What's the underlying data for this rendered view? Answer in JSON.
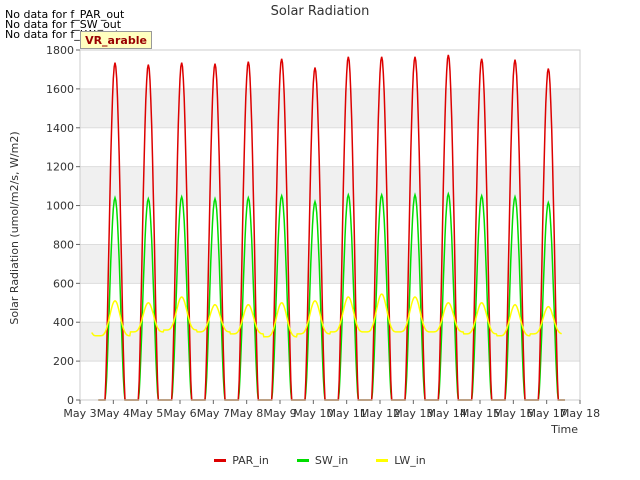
{
  "messages": [
    "No data for f_PAR_out",
    "No data for f_SW_out",
    "No data for f_LW_out"
  ],
  "vr_label": "VR_arable",
  "chart_data": {
    "type": "line",
    "title": "Solar Radiation",
    "xlabel": "Time",
    "ylabel": "Solar Radiation (umol/m2/s, W/m2)",
    "xlim": [
      "May 3",
      "May 18"
    ],
    "ylim": [
      0,
      1800
    ],
    "x_ticks": [
      "May 3",
      "May 4",
      "May 5",
      "May 6",
      "May 7",
      "May 8",
      "May 9",
      "May 10",
      "May 11",
      "May 12",
      "May 13",
      "May 14",
      "May 15",
      "May 16",
      "May 17",
      "May 18"
    ],
    "y_ticks": [
      0,
      200,
      400,
      600,
      800,
      1000,
      1200,
      1400,
      1600,
      1800
    ],
    "grid": true,
    "legend_position": "bottom",
    "days": [
      "May 4",
      "May 5",
      "May 6",
      "May 7",
      "May 8",
      "May 9",
      "May 10",
      "May 11",
      "May 12",
      "May 13",
      "May 14",
      "May 15",
      "May 16",
      "May 17"
    ],
    "series": [
      {
        "name": "PAR_in",
        "color": "#dd0000",
        "daily_peak": [
          1735,
          1725,
          1735,
          1730,
          1740,
          1755,
          1710,
          1765,
          1765,
          1765,
          1775,
          1755,
          1750,
          1705
        ]
      },
      {
        "name": "SW_in",
        "color": "#00dd00",
        "daily_peak": [
          1040,
          1035,
          1045,
          1035,
          1040,
          1050,
          1020,
          1055,
          1055,
          1055,
          1060,
          1050,
          1045,
          1015
        ]
      },
      {
        "name": "LW_in",
        "color": "#ffff00",
        "daily_peak": [
          510,
          500,
          530,
          490,
          490,
          500,
          510,
          530,
          545,
          530,
          500,
          500,
          490,
          480
        ],
        "daily_min": [
          330,
          350,
          360,
          350,
          340,
          325,
          340,
          350,
          350,
          350,
          350,
          340,
          330,
          340
        ]
      }
    ]
  }
}
